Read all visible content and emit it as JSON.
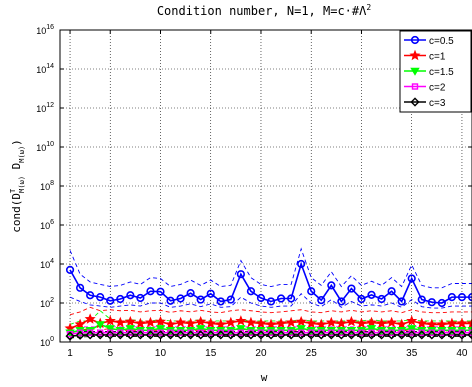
{
  "chart_data": {
    "type": "line",
    "title_prefix": "Condition number, N=1, M=c·#Λ",
    "title_sup": "2",
    "xlabel": "w",
    "ylabel_pre": "cond(D",
    "ylabel_sup": "T",
    "ylabel_sub1": "M(ω)",
    "ylabel_mid": " D",
    "ylabel_sub2": "M(ω)",
    "ylabel_post": ")",
    "yscale": "log",
    "xlim": [
      0,
      41
    ],
    "ylim_exp": [
      0,
      16
    ],
    "xticks": [
      1,
      5,
      10,
      15,
      20,
      25,
      30,
      35,
      40
    ],
    "yticks_exp": [
      0,
      2,
      4,
      6,
      8,
      10,
      12,
      14,
      16
    ],
    "ytick_base": "10",
    "grid": true,
    "legend_position": "top-right",
    "x": [
      1,
      2,
      3,
      4,
      5,
      6,
      7,
      8,
      9,
      10,
      11,
      12,
      13,
      14,
      15,
      16,
      17,
      18,
      19,
      20,
      21,
      22,
      23,
      24,
      25,
      26,
      27,
      28,
      29,
      30,
      31,
      32,
      33,
      34,
      35,
      36,
      37,
      38,
      39,
      40,
      41
    ],
    "series": [
      {
        "name": "c=0.5",
        "color": "#0000ff",
        "marker": "circle",
        "values": [
          5000,
          600,
          250,
          200,
          130,
          160,
          250,
          180,
          400,
          380,
          130,
          170,
          320,
          150,
          300,
          120,
          150,
          3000,
          400,
          180,
          120,
          170,
          170,
          10000,
          400,
          140,
          800,
          120,
          550,
          160,
          260,
          160,
          400,
          120,
          1800,
          150,
          110,
          100,
          200,
          200,
          200
        ],
        "upper": [
          50000,
          3000,
          1200,
          900,
          700,
          800,
          1200,
          900,
          2000,
          1800,
          700,
          900,
          1500,
          800,
          1500,
          700,
          800,
          15000,
          2000,
          900,
          700,
          900,
          900,
          60000,
          2000,
          800,
          4000,
          700,
          2500,
          800,
          1300,
          800,
          2000,
          700,
          9000,
          800,
          600,
          600,
          1000,
          1000,
          1000
        ],
        "lower": [
          200,
          120,
          80,
          70,
          60,
          70,
          80,
          70,
          100,
          100,
          60,
          70,
          90,
          65,
          90,
          60,
          65,
          200,
          100,
          70,
          60,
          70,
          70,
          300,
          100,
          65,
          150,
          60,
          120,
          70,
          80,
          70,
          100,
          60,
          150,
          65,
          55,
          55,
          70,
          70,
          70
        ]
      },
      {
        "name": "c=1",
        "color": "#ff0000",
        "marker": "star",
        "values": [
          5,
          8,
          15,
          9,
          12,
          10,
          11,
          9,
          10,
          11,
          8,
          10,
          9,
          11,
          9,
          8,
          10,
          12,
          10,
          9,
          8,
          9,
          10,
          11,
          9,
          8,
          10,
          9,
          11,
          9,
          10,
          9,
          10,
          8,
          12,
          9,
          8,
          8,
          9,
          9,
          9
        ],
        "upper": [
          25,
          35,
          60,
          40,
          45,
          40,
          42,
          35,
          40,
          42,
          33,
          40,
          35,
          42,
          35,
          32,
          40,
          45,
          40,
          35,
          32,
          35,
          40,
          45,
          35,
          32,
          40,
          35,
          42,
          35,
          40,
          35,
          40,
          32,
          45,
          35,
          32,
          32,
          35,
          35,
          35
        ],
        "lower": [
          3,
          4,
          5,
          4,
          5,
          4,
          4,
          4,
          4,
          4,
          3.5,
          4,
          4,
          4,
          4,
          3.5,
          4,
          4.5,
          4,
          4,
          3.5,
          4,
          4,
          4,
          4,
          3.5,
          4,
          4,
          4,
          4,
          4,
          4,
          4,
          3.5,
          4.5,
          4,
          3.5,
          3.5,
          4,
          4,
          4
        ]
      },
      {
        "name": "c=1.5",
        "color": "#00ff00",
        "marker": "triangle-down",
        "values": [
          3,
          4,
          4,
          8,
          5,
          4,
          5,
          4,
          4,
          5,
          4,
          4,
          4,
          5,
          4,
          4,
          4,
          5,
          4,
          4,
          4,
          4,
          4,
          5,
          4,
          4,
          4,
          4,
          4,
          4,
          5,
          4,
          4,
          4,
          5,
          4,
          4,
          4,
          4,
          4,
          4
        ],
        "upper": [
          8,
          12,
          12,
          40,
          15,
          12,
          14,
          12,
          12,
          14,
          12,
          12,
          12,
          14,
          12,
          12,
          12,
          14,
          12,
          12,
          12,
          12,
          12,
          14,
          12,
          12,
          12,
          12,
          12,
          12,
          14,
          12,
          12,
          12,
          14,
          12,
          12,
          12,
          12,
          12,
          12
        ],
        "lower": [
          2,
          2.5,
          2.5,
          3,
          2.8,
          2.5,
          2.8,
          2.5,
          2.5,
          2.8,
          2.5,
          2.5,
          2.5,
          2.8,
          2.5,
          2.5,
          2.5,
          2.8,
          2.5,
          2.5,
          2.5,
          2.5,
          2.5,
          2.8,
          2.5,
          2.5,
          2.5,
          2.5,
          2.5,
          2.5,
          2.8,
          2.5,
          2.5,
          2.5,
          2.8,
          2.5,
          2.5,
          2.5,
          2.5,
          2.5,
          2.5
        ]
      },
      {
        "name": "c=2",
        "color": "#ff00ff",
        "marker": "square",
        "values": [
          2.5,
          3,
          3,
          3,
          3,
          3,
          3,
          3,
          3,
          3,
          3,
          3,
          3,
          3,
          3,
          3,
          3,
          3,
          3,
          3,
          3,
          3,
          3,
          3,
          3,
          3,
          3,
          3,
          3,
          3,
          3,
          3,
          3,
          3,
          3,
          3,
          3,
          3,
          3,
          3,
          3
        ],
        "upper": [
          5,
          6,
          6,
          6,
          6,
          6,
          6,
          6,
          6,
          6,
          6,
          6,
          6,
          6,
          6,
          6,
          6,
          6,
          6,
          6,
          6,
          6,
          6,
          6,
          6,
          6,
          6,
          6,
          6,
          6,
          6,
          6,
          6,
          6,
          6,
          6,
          6,
          6,
          6,
          6,
          6
        ],
        "lower": [
          2,
          2.2,
          2.2,
          2.2,
          2.2,
          2.2,
          2.2,
          2.2,
          2.2,
          2.2,
          2.2,
          2.2,
          2.2,
          2.2,
          2.2,
          2.2,
          2.2,
          2.2,
          2.2,
          2.2,
          2.2,
          2.2,
          2.2,
          2.2,
          2.2,
          2.2,
          2.2,
          2.2,
          2.2,
          2.2,
          2.2,
          2.2,
          2.2,
          2.2,
          2.2,
          2.2,
          2.2,
          2.2,
          2.2,
          2.2,
          2.2
        ]
      },
      {
        "name": "c=3",
        "color": "#000000",
        "marker": "diamond",
        "values": [
          2,
          2.2,
          2.3,
          2.3,
          2.3,
          2.3,
          2.3,
          2.3,
          2.3,
          2.3,
          2.3,
          2.3,
          2.3,
          2.3,
          2.3,
          2.3,
          2.3,
          2.3,
          2.3,
          2.3,
          2.3,
          2.3,
          2.3,
          2.3,
          2.3,
          2.3,
          2.3,
          2.3,
          2.3,
          2.3,
          2.3,
          2.3,
          2.3,
          2.3,
          2.3,
          2.3,
          2.3,
          2.3,
          2.3,
          2.3,
          2.3
        ],
        "upper": [
          3,
          3.5,
          3.5,
          3.5,
          3.5,
          3.5,
          3.5,
          3.5,
          3.5,
          3.5,
          3.5,
          3.5,
          3.5,
          3.5,
          3.5,
          3.5,
          3.5,
          3.5,
          3.5,
          3.5,
          3.5,
          3.5,
          3.5,
          3.5,
          3.5,
          3.5,
          3.5,
          3.5,
          3.5,
          3.5,
          3.5,
          3.5,
          3.5,
          3.5,
          3.5,
          3.5,
          3.5,
          3.5,
          3.5,
          3.5,
          3.5
        ],
        "lower": [
          1.6,
          1.8,
          1.9,
          1.9,
          1.9,
          1.9,
          1.9,
          1.9,
          1.9,
          1.9,
          1.9,
          1.9,
          1.9,
          1.9,
          1.9,
          1.9,
          1.9,
          1.9,
          1.9,
          1.9,
          1.9,
          1.9,
          1.9,
          1.9,
          1.9,
          1.9,
          1.9,
          1.9,
          1.9,
          1.9,
          1.9,
          1.9,
          1.9,
          1.9,
          1.9,
          1.9,
          1.9,
          1.9,
          1.9,
          1.9,
          1.9
        ]
      }
    ]
  }
}
